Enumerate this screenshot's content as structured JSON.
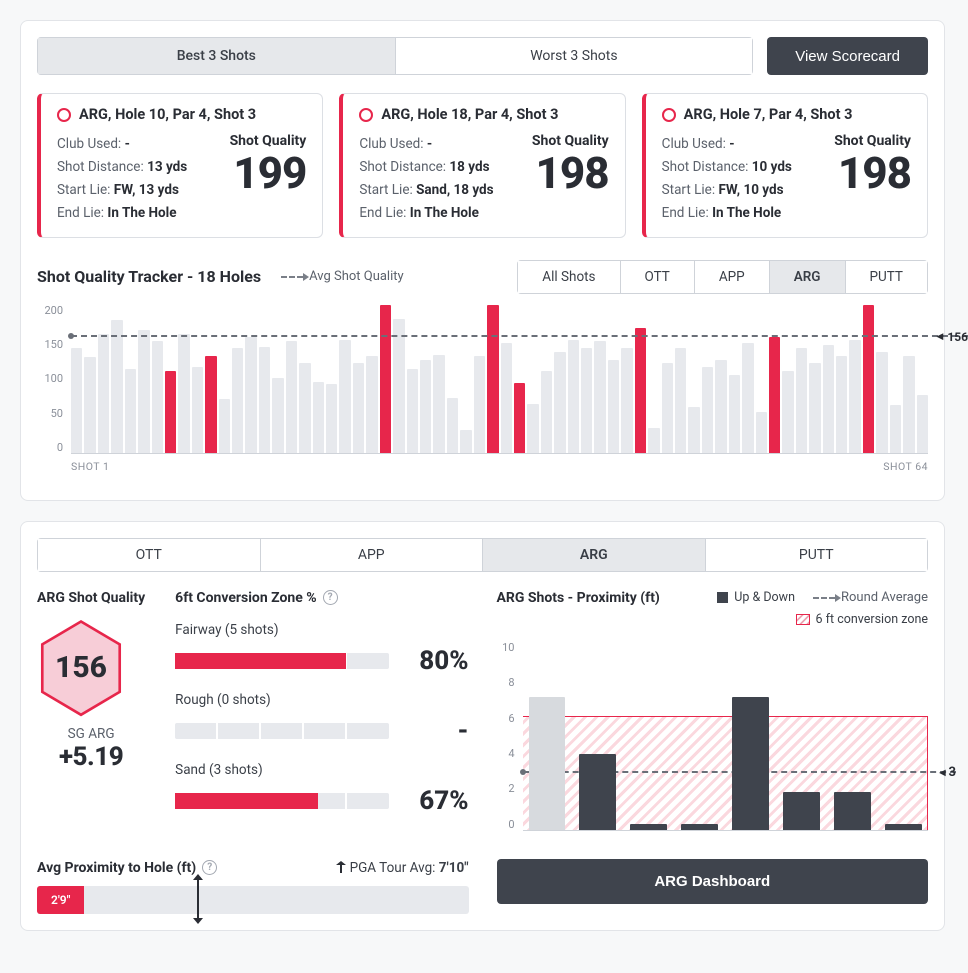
{
  "colors": {
    "accent": "#e7264b",
    "dark": "#3f444d",
    "grey_bar": "#e7e9ed",
    "text_muted": "#5b616b",
    "border": "#cfd3d9"
  },
  "top_segments": {
    "best": "Best 3 Shots",
    "worst": "Worst 3 Shots",
    "active": "best"
  },
  "view_scorecard_label": "View Scorecard",
  "shot_cards": [
    {
      "title": "ARG, Hole 10, Par 4, Shot 3",
      "club_used_label": "Club Used:",
      "club_used": " -",
      "distance_label": "Shot Distance:",
      "distance": " 13 yds",
      "start_lie_label": "Start Lie:",
      "start_lie": " FW, 13 yds",
      "end_lie_label": "End Lie:",
      "end_lie": " In The Hole",
      "sq_label": "Shot Quality",
      "sq_score": "199"
    },
    {
      "title": "ARG, Hole 18, Par 4, Shot 3",
      "club_used_label": "Club Used:",
      "club_used": " -",
      "distance_label": "Shot Distance:",
      "distance": " 18 yds",
      "start_lie_label": "Start Lie:",
      "start_lie": " Sand, 18 yds",
      "end_lie_label": "End Lie:",
      "end_lie": " In The Hole",
      "sq_label": "Shot Quality",
      "sq_score": "198"
    },
    {
      "title": "ARG, Hole 7, Par 4, Shot 3",
      "club_used_label": "Club Used:",
      "club_used": " -",
      "distance_label": "Shot Distance:",
      "distance": " 10 yds",
      "start_lie_label": "Start Lie:",
      "start_lie": " FW, 10 yds",
      "end_lie_label": "End Lie:",
      "end_lie": " In The Hole",
      "sq_label": "Shot Quality",
      "sq_score": "198"
    }
  ],
  "tracker": {
    "title": "Shot Quality Tracker - 18 Holes",
    "legend_label": "Avg Shot Quality",
    "filters": [
      "All Shots",
      "OTT",
      "APP",
      "ARG",
      "PUTT"
    ],
    "active_filter": "ARG",
    "y_ticks": [
      "200",
      "150",
      "100",
      "50",
      "0"
    ],
    "y_max": 200,
    "avg_value": 156,
    "avg_label": "156",
    "x_start_label": "SHOT 1",
    "x_end_label": "SHOT 64",
    "bars": [
      {
        "v": 140,
        "hl": false
      },
      {
        "v": 128,
        "hl": false
      },
      {
        "v": 160,
        "hl": false
      },
      {
        "v": 178,
        "hl": false
      },
      {
        "v": 113,
        "hl": false
      },
      {
        "v": 165,
        "hl": false
      },
      {
        "v": 150,
        "hl": false
      },
      {
        "v": 110,
        "hl": true
      },
      {
        "v": 160,
        "hl": false
      },
      {
        "v": 115,
        "hl": false
      },
      {
        "v": 130,
        "hl": true
      },
      {
        "v": 72,
        "hl": false
      },
      {
        "v": 140,
        "hl": false
      },
      {
        "v": 155,
        "hl": false
      },
      {
        "v": 142,
        "hl": false
      },
      {
        "v": 100,
        "hl": false
      },
      {
        "v": 150,
        "hl": false
      },
      {
        "v": 120,
        "hl": false
      },
      {
        "v": 95,
        "hl": false
      },
      {
        "v": 92,
        "hl": false
      },
      {
        "v": 152,
        "hl": false
      },
      {
        "v": 120,
        "hl": false
      },
      {
        "v": 130,
        "hl": false
      },
      {
        "v": 198,
        "hl": true
      },
      {
        "v": 180,
        "hl": false
      },
      {
        "v": 113,
        "hl": false
      },
      {
        "v": 124,
        "hl": false
      },
      {
        "v": 131,
        "hl": false
      },
      {
        "v": 74,
        "hl": false
      },
      {
        "v": 30,
        "hl": false
      },
      {
        "v": 130,
        "hl": false
      },
      {
        "v": 199,
        "hl": true
      },
      {
        "v": 148,
        "hl": false
      },
      {
        "v": 93,
        "hl": true
      },
      {
        "v": 65,
        "hl": false
      },
      {
        "v": 110,
        "hl": false
      },
      {
        "v": 135,
        "hl": false
      },
      {
        "v": 152,
        "hl": false
      },
      {
        "v": 141,
        "hl": false
      },
      {
        "v": 150,
        "hl": false
      },
      {
        "v": 125,
        "hl": false
      },
      {
        "v": 140,
        "hl": false
      },
      {
        "v": 168,
        "hl": true
      },
      {
        "v": 33,
        "hl": false
      },
      {
        "v": 120,
        "hl": false
      },
      {
        "v": 140,
        "hl": false
      },
      {
        "v": 62,
        "hl": false
      },
      {
        "v": 115,
        "hl": false
      },
      {
        "v": 125,
        "hl": false
      },
      {
        "v": 105,
        "hl": false
      },
      {
        "v": 148,
        "hl": false
      },
      {
        "v": 55,
        "hl": false
      },
      {
        "v": 156,
        "hl": true
      },
      {
        "v": 110,
        "hl": false
      },
      {
        "v": 140,
        "hl": false
      },
      {
        "v": 120,
        "hl": false
      },
      {
        "v": 145,
        "hl": false
      },
      {
        "v": 130,
        "hl": false
      },
      {
        "v": 152,
        "hl": false
      },
      {
        "v": 198,
        "hl": true
      },
      {
        "v": 135,
        "hl": false
      },
      {
        "v": 64,
        "hl": false
      },
      {
        "v": 130,
        "hl": false
      },
      {
        "v": 78,
        "hl": false
      }
    ]
  },
  "lower_tabs": {
    "items": [
      "OTT",
      "APP",
      "ARG",
      "PUTT"
    ],
    "active": "ARG"
  },
  "arg_quality": {
    "title": "ARG Shot Quality",
    "hex_value": "156",
    "sg_label": "SG ARG",
    "sg_value": "+5.19"
  },
  "conversion": {
    "title": "6ft Conversion Zone %",
    "items": [
      {
        "label": "Fairway (5 shots)",
        "pct": 80,
        "pct_text": "80%"
      },
      {
        "label": "Rough (0 shots)",
        "pct": 0,
        "pct_text": "-"
      },
      {
        "label": "Sand (3 shots)",
        "pct": 67,
        "pct_text": "67%"
      }
    ]
  },
  "proximity_footer": {
    "label": "Avg Proximity to Hole (ft)",
    "pga_label": "PGA Tour Avg: ",
    "pga_value": "7'10\"",
    "player_value": "2'9\"",
    "player_pct": 11,
    "pga_marker_pct": 37
  },
  "proximity_chart": {
    "title": "ARG Shots - Proximity (ft)",
    "legend_updown": "Up & Down",
    "legend_roundavg": "Round Average",
    "legend_zone": "6 ft conversion zone",
    "y_ticks": [
      "10",
      "8",
      "6",
      "4",
      "2",
      "0"
    ],
    "y_max": 10,
    "zone_max": 6,
    "avg_value": 3,
    "avg_label": "3",
    "bars": [
      {
        "v": 7,
        "converted": false
      },
      {
        "v": 4,
        "converted": true
      },
      {
        "v": 0.3,
        "converted": true
      },
      {
        "v": 0.3,
        "converted": true
      },
      {
        "v": 7,
        "converted": true
      },
      {
        "v": 2,
        "converted": true
      },
      {
        "v": 2,
        "converted": true
      },
      {
        "v": 0.3,
        "converted": true
      }
    ],
    "dashboard_label": "ARG Dashboard"
  }
}
